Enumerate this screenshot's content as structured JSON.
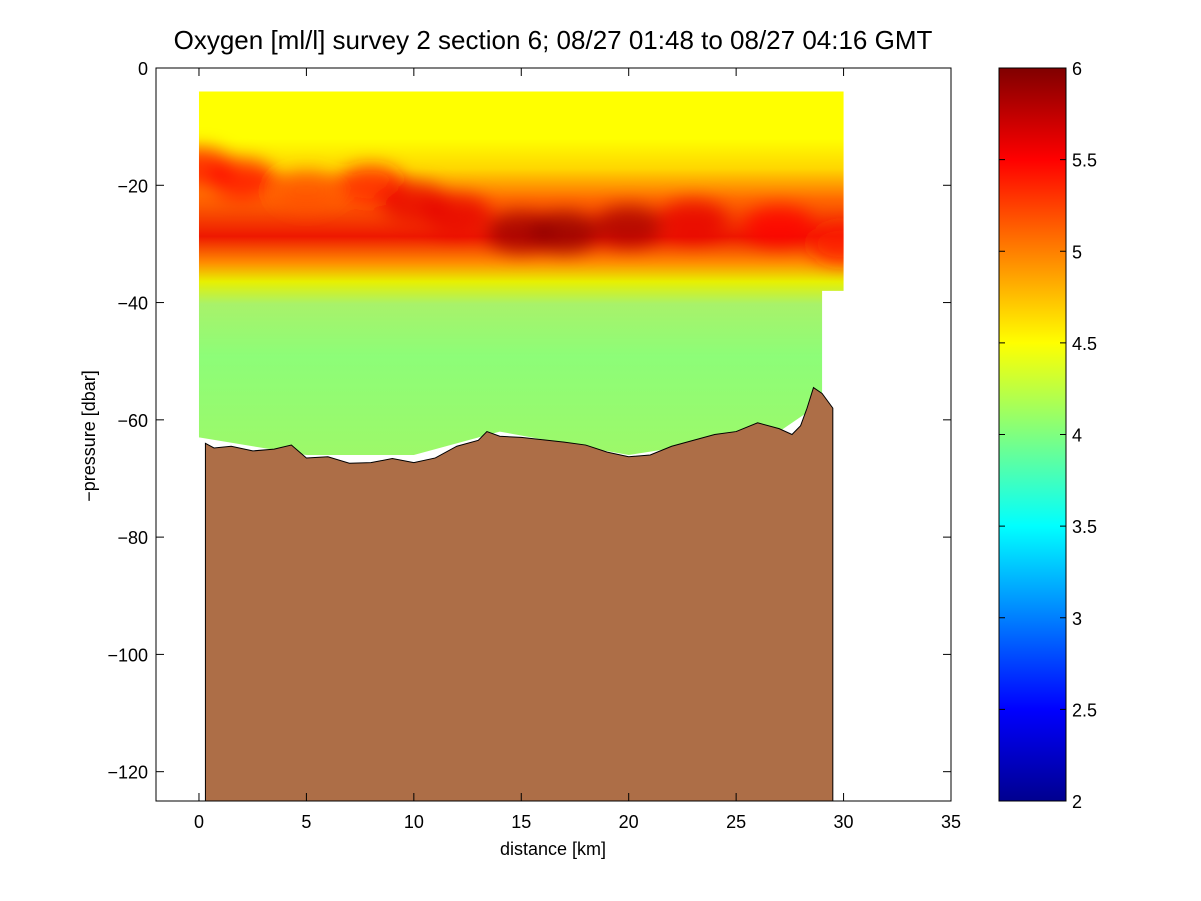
{
  "chart_data": {
    "type": "heatmap",
    "title": "Oxygen [ml/l] survey 2 section 6; 08/27 01:48 to 08/27 04:16 GMT",
    "xlabel": "distance [km]",
    "ylabel": "−pressure [dbar]",
    "xlim": [
      -2,
      35
    ],
    "ylim": [
      -125,
      0
    ],
    "x_ticks": [
      0,
      5,
      10,
      15,
      20,
      25,
      30,
      35
    ],
    "y_ticks": [
      0,
      -20,
      -40,
      -60,
      -80,
      -100,
      -120
    ],
    "y_tick_labels": [
      "0",
      "−20",
      "−40",
      "−60",
      "−80",
      "−100",
      "−120"
    ],
    "grid": false,
    "colormap": "jet",
    "color_range": [
      2,
      6
    ],
    "colorbar_ticks": [
      2,
      2.5,
      3,
      3.5,
      4,
      4.5,
      5,
      5.5,
      6
    ],
    "colorbar_tick_labels": [
      "2",
      "2.5",
      "3",
      "3.5",
      "4",
      "4.5",
      "5",
      "5.5",
      "6"
    ],
    "seabed_color": "#ad6e47",
    "data_top_pressure": -4,
    "data_extent": [
      [
        0,
        -4
      ],
      [
        30,
        -4
      ],
      [
        30,
        -38
      ],
      [
        29,
        -38
      ],
      [
        29,
        -57
      ],
      [
        27,
        -62
      ],
      [
        20,
        -66
      ],
      [
        14,
        -62
      ],
      [
        10,
        -66
      ],
      [
        5,
        -66
      ],
      [
        0,
        -63
      ]
    ],
    "oxygen_layers": {
      "surface_value": 4.45,
      "deep_value": 4.1,
      "max_core": {
        "x": [
          0,
          2,
          5,
          8,
          10,
          12,
          15,
          17,
          20,
          23,
          27,
          30
        ],
        "y": [
          -17,
          -19,
          -21,
          -20,
          -23,
          -25,
          -28,
          -28,
          -27,
          -26,
          -27,
          -30
        ],
        "value": [
          5.5,
          5.5,
          5.2,
          5.4,
          5.6,
          5.6,
          5.9,
          5.95,
          5.85,
          5.6,
          5.5,
          5.4
        ]
      }
    },
    "bathymetry": {
      "distance_km": [
        0.3,
        0.7,
        1.5,
        2.5,
        3.5,
        4.3,
        5,
        6,
        7,
        8,
        9,
        10,
        11,
        12,
        13,
        13.4,
        14,
        15,
        16,
        17,
        18,
        19,
        20,
        21,
        22,
        23,
        24,
        25,
        26,
        27,
        27.6,
        28,
        28.3,
        28.6,
        29,
        29.5,
        29.5
      ],
      "depth": [
        -64,
        -64.8,
        -64.5,
        -65.3,
        -65,
        -64.3,
        -66.5,
        -66.3,
        -67.4,
        -67.3,
        -66.6,
        -67.3,
        -66.5,
        -64.5,
        -63.5,
        -62,
        -62.8,
        -63,
        -63.4,
        -63.8,
        -64.3,
        -65.5,
        -66.3,
        -66,
        -64.5,
        -63.5,
        -62.5,
        -62,
        -60.5,
        -61.5,
        -62.5,
        -61,
        -58,
        -54.5,
        -55.5,
        -58,
        -125
      ]
    }
  }
}
